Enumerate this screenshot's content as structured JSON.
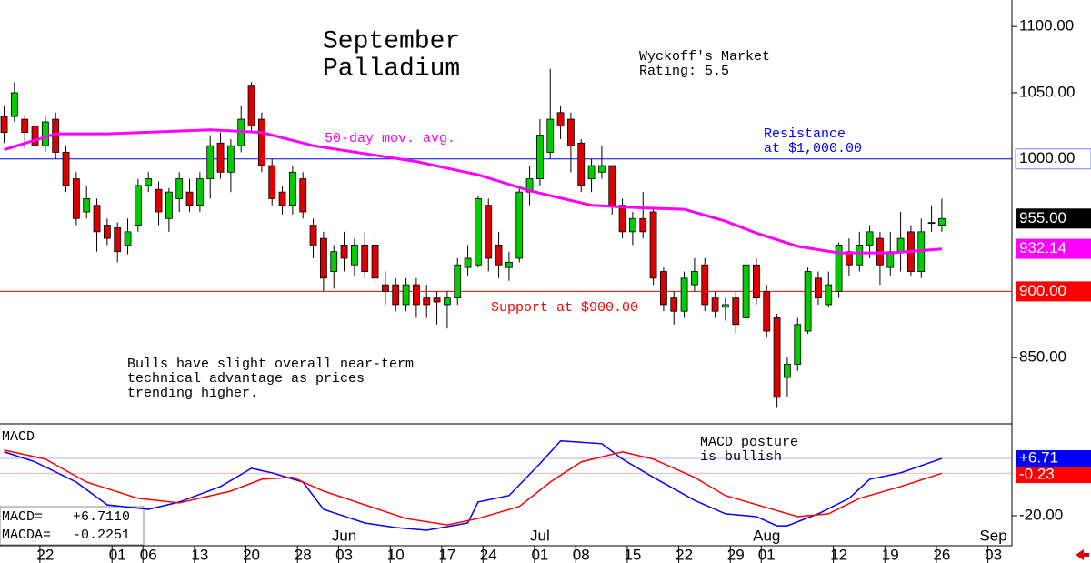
{
  "chart_data": {
    "type": "candlestick",
    "title_lines": [
      "September",
      "Palladium"
    ],
    "rating_lines": [
      "Wyckoff's Market",
      "Rating: 5.5"
    ],
    "resistance_lines": [
      "Resistance",
      "at $1,000.00"
    ],
    "support_text": "Support at $900.00",
    "note_lines": [
      "Bulls have slight overall near-term",
      "technical advantage as prices",
      "trending higher."
    ],
    "up_color": "#00cc00",
    "down_color": "#dd0000",
    "open": [
      1032,
      1032,
      1030,
      1025,
      1010,
      1030,
      1005,
      985,
      960,
      965,
      950,
      948,
      935,
      950,
      980,
      977,
      955,
      970,
      975,
      965,
      985,
      1012,
      990,
      1010,
      1055,
      1030,
      995,
      975,
      965,
      985,
      950,
      940,
      915,
      935,
      920,
      935,
      935,
      905,
      905,
      890,
      905,
      895,
      895,
      890,
      895,
      918,
      920,
      965,
      935,
      918,
      925,
      975,
      985,
      1005,
      1035,
      1030,
      1012,
      985,
      990,
      995,
      965,
      945,
      955,
      960,
      915,
      895,
      885,
      905,
      920,
      895,
      888,
      895,
      880,
      920,
      900,
      880,
      835,
      845,
      870,
      910,
      890,
      900,
      930,
      920,
      935,
      940,
      918,
      930,
      945,
      915,
      952,
      950
    ],
    "high": [
      1040,
      1058,
      1033,
      1030,
      1033,
      1035,
      1010,
      990,
      980,
      970,
      955,
      952,
      955,
      985,
      990,
      983,
      978,
      990,
      985,
      990,
      1018,
      1020,
      1015,
      1040,
      1058,
      1035,
      1000,
      980,
      995,
      990,
      955,
      945,
      935,
      945,
      940,
      945,
      940,
      915,
      910,
      910,
      910,
      905,
      900,
      900,
      925,
      935,
      972,
      970,
      945,
      930,
      980,
      995,
      1030,
      1068,
      1040,
      1035,
      1015,
      1000,
      1010,
      995,
      970,
      960,
      975,
      962,
      918,
      900,
      915,
      925,
      925,
      900,
      895,
      900,
      925,
      925,
      905,
      883,
      850,
      880,
      918,
      915,
      915,
      937,
      940,
      945,
      950,
      945,
      945,
      960,
      950,
      955,
      965,
      970
    ],
    "low": [
      1012,
      1028,
      1008,
      1000,
      1005,
      1000,
      975,
      950,
      955,
      930,
      935,
      922,
      928,
      945,
      975,
      950,
      945,
      960,
      960,
      960,
      970,
      985,
      975,
      1005,
      1020,
      990,
      965,
      958,
      958,
      955,
      925,
      900,
      902,
      915,
      912,
      910,
      905,
      890,
      885,
      885,
      880,
      880,
      875,
      872,
      890,
      912,
      918,
      915,
      910,
      908,
      922,
      965,
      980,
      1000,
      1015,
      990,
      975,
      975,
      985,
      958,
      940,
      935,
      940,
      905,
      885,
      875,
      880,
      900,
      885,
      880,
      878,
      868,
      878,
      890,
      865,
      812,
      820,
      840,
      868,
      890,
      888,
      895,
      912,
      915,
      925,
      905,
      912,
      915,
      912,
      910,
      945,
      945
    ],
    "close": [
      1020,
      1050,
      1020,
      1010,
      1028,
      1005,
      980,
      955,
      970,
      945,
      940,
      930,
      945,
      980,
      985,
      960,
      975,
      985,
      965,
      985,
      1010,
      990,
      1010,
      1030,
      1025,
      995,
      970,
      965,
      990,
      960,
      935,
      910,
      930,
      925,
      935,
      915,
      910,
      900,
      890,
      905,
      890,
      890,
      892,
      895,
      920,
      925,
      970,
      925,
      920,
      922,
      975,
      985,
      1018,
      1030,
      1025,
      1010,
      980,
      995,
      995,
      965,
      945,
      955,
      945,
      910,
      890,
      885,
      910,
      915,
      890,
      885,
      890,
      875,
      920,
      895,
      870,
      820,
      845,
      875,
      915,
      895,
      905,
      935,
      920,
      935,
      945,
      920,
      930,
      940,
      915,
      945,
      952,
      955
    ],
    "ma": {
      "name": "50-day mov. avg.",
      "color": "#ff00ff",
      "x": [
        0,
        5,
        10,
        20,
        25,
        30,
        35,
        40,
        46,
        51,
        57,
        62,
        66,
        70,
        73,
        77,
        81,
        86,
        91
      ],
      "values": [
        1007,
        1019,
        1019,
        1022,
        1020,
        1010,
        1004,
        998,
        988,
        976,
        965,
        963,
        962,
        953,
        944,
        934,
        929,
        929,
        932
      ]
    },
    "hlines": [
      {
        "value": 1000,
        "label": "1000.00",
        "color": "#0000ff"
      },
      {
        "value": 900,
        "label": "900.00",
        "color": "#ff0000"
      }
    ],
    "tags": [
      {
        "value": 955,
        "label": "955.00",
        "color": "#000000"
      },
      {
        "value": 932.14,
        "label": "932.14",
        "color": "#ff00ff"
      }
    ],
    "ylim": [
      800,
      1120
    ],
    "yticks": [
      {
        "value": 850,
        "label": "850.00"
      },
      {
        "value": 1050,
        "label": "1050.00"
      },
      {
        "value": 1100,
        "label": "1100.00"
      }
    ],
    "xlim": [
      -0.4,
      97.8
    ],
    "xticks": [
      {
        "value": 4,
        "label": "22"
      },
      {
        "value": 11,
        "label": "01"
      },
      {
        "value": 14,
        "label": "06"
      },
      {
        "value": 19,
        "label": "13"
      },
      {
        "value": 24,
        "label": "20"
      },
      {
        "value": 29,
        "label": "28"
      },
      {
        "value": 33,
        "label": "03"
      },
      {
        "value": 38,
        "label": "10"
      },
      {
        "value": 43,
        "label": "17"
      },
      {
        "value": 47,
        "label": "24"
      },
      {
        "value": 52,
        "label": "01"
      },
      {
        "value": 56,
        "label": "08"
      },
      {
        "value": 61,
        "label": "15"
      },
      {
        "value": 66,
        "label": "22"
      },
      {
        "value": 71,
        "label": "29"
      },
      {
        "value": 74,
        "label": "01"
      },
      {
        "value": 81,
        "label": "12"
      },
      {
        "value": 86,
        "label": "19"
      },
      {
        "value": 91,
        "label": "26"
      },
      {
        "value": 96,
        "label": "03"
      }
    ],
    "month_ticks": [
      {
        "value": 33,
        "label": "Jun"
      },
      {
        "value": 52,
        "label": "Jul"
      },
      {
        "value": 74,
        "label": "Aug"
      },
      {
        "value": 96,
        "label": "Sep"
      }
    ],
    "macd": {
      "title": "MACD",
      "posture_lines": [
        "MACD posture",
        "is bullish"
      ],
      "ylim": [
        -34,
        22
      ],
      "yticks": [
        {
          "value": -20,
          "label": "-20.00"
        }
      ],
      "series": [
        {
          "name": "MACD=",
          "color": "#0000ff",
          "readout": {
            "value": 6.711,
            "label": "+6.7110"
          },
          "tag": {
            "value": 6.71,
            "label": "+6.71"
          },
          "x": [
            0,
            3,
            7,
            10,
            14,
            17,
            21,
            24,
            26,
            29,
            31,
            35,
            38,
            41,
            45,
            46,
            49,
            52,
            54,
            58,
            60,
            63,
            67,
            70,
            73,
            75,
            76,
            79,
            82,
            84,
            87,
            91
          ],
          "values": [
            9.8,
            5.1,
            -4.3,
            -14.9,
            -17.0,
            -13.6,
            -6.4,
            2.1,
            0,
            -4.3,
            -17.0,
            -23.4,
            -25.5,
            -26.8,
            -23.4,
            -13.6,
            -10.6,
            4.3,
            14.9,
            13.6,
            6.4,
            -2.1,
            -12.8,
            -19.1,
            -20.4,
            -24.7,
            -24.7,
            -19.1,
            -11.9,
            -3.0,
            0,
            6.7
          ]
        },
        {
          "name": "MACDA=",
          "color": "#ff0000",
          "readout": {
            "value": -0.2251,
            "label": "-0.2251"
          },
          "tag": {
            "value": -0.23,
            "label": "-0.23"
          },
          "x": [
            0,
            4,
            8,
            13,
            17,
            22,
            25,
            28,
            31,
            35,
            39,
            43,
            46,
            50,
            53,
            56,
            60,
            63,
            67,
            70,
            74,
            77,
            80,
            83,
            87,
            91
          ],
          "values": [
            10.6,
            6.4,
            -4.3,
            -11.9,
            -14.0,
            -8.5,
            -3.0,
            -2.1,
            -8.5,
            -14.9,
            -21.3,
            -24.3,
            -21.3,
            -15.7,
            -4.3,
            5.1,
            9.8,
            6.4,
            -2.1,
            -10.6,
            -16.2,
            -20.4,
            -19.1,
            -11.9,
            -6.4,
            -0.2
          ]
        }
      ]
    }
  }
}
